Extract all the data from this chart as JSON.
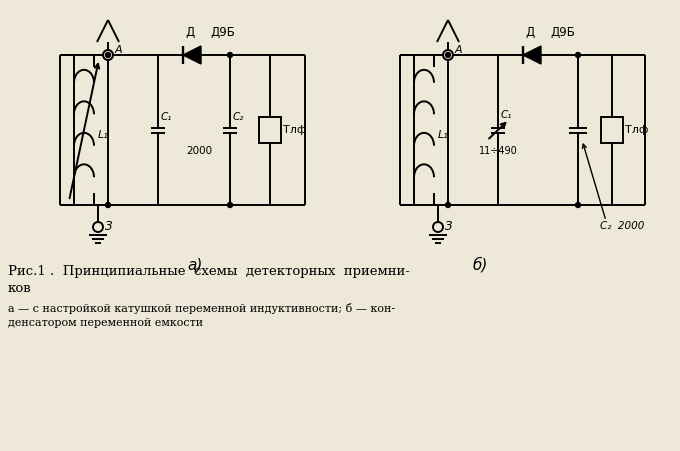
{
  "bg_color": "#ede8d8",
  "line_color": "#000000",
  "fig_width": 6.8,
  "fig_height": 4.51,
  "title_line1": "Рис.1 .  Принципиальные  схемы  детекторных  приемни-",
  "title_line2": "ков",
  "subtitle_line1": "а — с настройкой катушкой переменной индуктивности; б — кон-",
  "subtitle_line2": "денсатором переменной емкости",
  "label_a": "а)",
  "label_b": "б)"
}
